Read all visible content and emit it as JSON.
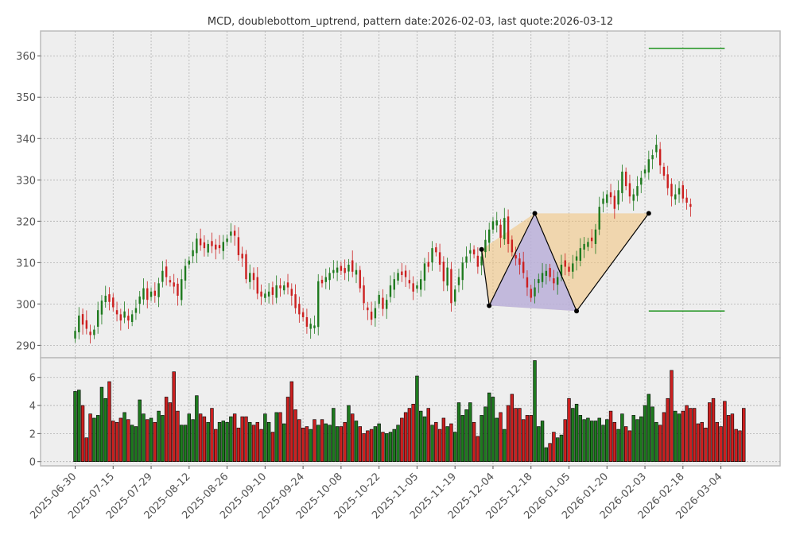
{
  "chart_data": {
    "type": "candlestick",
    "title": "MCD, doublebottom_uptrend, pattern date:2026-02-03, last quote:2026-03-12",
    "price_ylim": [
      287,
      366
    ],
    "price_yticks": [
      290,
      300,
      310,
      320,
      330,
      340,
      350,
      360
    ],
    "volume_ylim": [
      -0.3,
      7.4
    ],
    "volume_yticks": [
      0,
      2,
      4,
      6
    ],
    "x_tick_labels": [
      "2025-06-30",
      "2025-07-15",
      "2025-07-29",
      "2025-08-12",
      "2025-08-26",
      "2025-09-10",
      "2025-09-24",
      "2025-10-08",
      "2025-10-22",
      "2025-11-05",
      "2025-11-19",
      "2025-12-04",
      "2025-12-18",
      "2026-01-05",
      "2026-01-20",
      "2026-02-03",
      "2026-02-18",
      "2026-03-04"
    ],
    "x_tick_index": [
      0,
      10,
      20,
      30,
      40,
      50,
      60,
      70,
      80,
      90,
      100,
      110,
      120,
      130,
      140,
      150,
      160,
      170
    ],
    "closes": [
      293.5,
      297.2,
      295.0,
      294.0,
      292.5,
      293.8,
      298.5,
      300.8,
      302.0,
      300.5,
      299.2,
      297.5,
      296.0,
      298.2,
      296.0,
      297.5,
      299.0,
      301.8,
      303.8,
      301.0,
      303.0,
      302.0,
      305.0,
      308.0,
      306.5,
      305.2,
      304.2,
      302.0,
      306.0,
      309.2,
      310.5,
      313.0,
      315.8,
      314.2,
      313.5,
      314.5,
      314.0,
      313.2,
      313.5,
      315.0,
      315.8,
      317.5,
      316.5,
      311.8,
      311.0,
      306.0,
      307.5,
      305.8,
      302.5,
      301.8,
      302.5,
      303.0,
      302.2,
      304.5,
      303.8,
      304.5,
      304.0,
      302.0,
      299.0,
      297.5,
      296.8,
      294.5,
      295.2,
      294.8,
      305.5,
      305.0,
      306.5,
      307.5,
      308.2,
      308.8,
      308.0,
      307.5,
      309.5,
      307.8,
      308.2,
      303.8,
      300.2,
      298.5,
      296.2,
      299.0,
      302.2,
      298.8,
      301.0,
      304.5,
      306.0,
      307.5,
      307.0,
      306.5,
      305.0,
      303.0,
      304.5,
      306.0,
      309.8,
      309.0,
      313.5,
      312.5,
      309.5,
      305.5,
      308.8,
      300.2,
      303.5,
      306.5,
      310.0,
      311.5,
      313.0,
      312.0,
      309.0,
      311.5,
      315.5,
      318.0,
      320.0,
      320.2,
      316.0,
      320.8,
      314.5,
      312.5,
      311.0,
      309.5,
      307.5,
      304.0,
      301.5,
      304.0,
      306.0,
      307.5,
      308.0,
      306.5,
      305.0,
      306.5,
      309.5,
      309.0,
      307.8,
      309.8,
      311.5,
      313.5,
      314.5,
      315.0,
      315.2,
      318.0,
      323.5,
      325.5,
      326.5,
      325.8,
      323.0,
      327.5,
      332.0,
      328.5,
      326.0,
      326.5,
      328.5,
      330.5,
      332.5,
      335.0,
      336.0,
      338.5,
      333.5,
      331.0,
      328.0,
      326.0,
      326.5,
      328.0,
      325.5,
      324.5,
      323.5
    ],
    "volumes": [
      5.0,
      5.1,
      4.0,
      1.7,
      3.4,
      3.1,
      3.3,
      5.3,
      4.5,
      5.7,
      2.9,
      2.8,
      3.1,
      3.5,
      3.0,
      2.6,
      2.5,
      4.4,
      3.4,
      3.0,
      3.1,
      2.8,
      3.6,
      3.3,
      4.6,
      4.2,
      6.4,
      3.6,
      2.6,
      2.6,
      3.4,
      3.0,
      4.7,
      3.4,
      3.2,
      2.8,
      3.8,
      2.3,
      2.8,
      2.9,
      2.8,
      3.2,
      3.4,
      2.4,
      3.2,
      3.2,
      2.8,
      2.6,
      2.8,
      2.3,
      3.4,
      2.8,
      2.1,
      3.5,
      3.5,
      2.7,
      4.6,
      5.7,
      3.7,
      3.0,
      2.4,
      2.5,
      2.3,
      3.0,
      2.6,
      3.0,
      2.7,
      2.6,
      3.8,
      2.5,
      2.5,
      2.8,
      4.0,
      3.4,
      2.9,
      2.5,
      2.0,
      2.2,
      2.3,
      2.5,
      2.7,
      2.1,
      2.0,
      2.1,
      2.3,
      2.6,
      3.1,
      3.5,
      3.8,
      4.1,
      6.1,
      3.6,
      3.2,
      3.8,
      2.6,
      2.8,
      2.3,
      3.1,
      2.5,
      2.7,
      2.1,
      4.2,
      3.3,
      3.7,
      4.2,
      2.8,
      1.8,
      3.3,
      3.9,
      4.9,
      4.6,
      3.1,
      3.5,
      2.3,
      4.0,
      4.8,
      3.8,
      3.8,
      3.0,
      3.3,
      3.3,
      7.2,
      2.5,
      2.9,
      1.0,
      1.3,
      2.1,
      1.7,
      1.9,
      3.0,
      4.5,
      3.8,
      4.1,
      3.3,
      3.0,
      3.1,
      2.9,
      2.9,
      3.1,
      2.6,
      3.0,
      3.6,
      2.8,
      2.3,
      3.4,
      2.5,
      2.2,
      3.3,
      3.0,
      3.2,
      4.0,
      4.8,
      3.9,
      2.8,
      2.6,
      3.5,
      4.5,
      6.5,
      3.6,
      3.4,
      3.6,
      4.0,
      3.8,
      3.8,
      2.7,
      2.8,
      2.4,
      4.2,
      4.5,
      2.8,
      2.5,
      4.3,
      3.3,
      3.4,
      2.3,
      2.2,
      3.8
    ],
    "pattern_points": [
      {
        "index": 107,
        "price": 313.2
      },
      {
        "index": 109,
        "price": 299.6
      },
      {
        "index": 121,
        "price": 321.9
      },
      {
        "index": 132,
        "price": 298.3
      },
      {
        "index": 151,
        "price": 321.9
      }
    ],
    "target_levels": [
      361.8,
      298.3
    ],
    "target_range": [
      151,
      171
    ],
    "colors": {
      "up": "#1e7a1e",
      "down": "#cc2020",
      "target": "#0a8a0a",
      "pattern_line": "#000000",
      "triangle_orange": "#f2c27a",
      "triangle_blue": "#a9a9f5"
    }
  }
}
